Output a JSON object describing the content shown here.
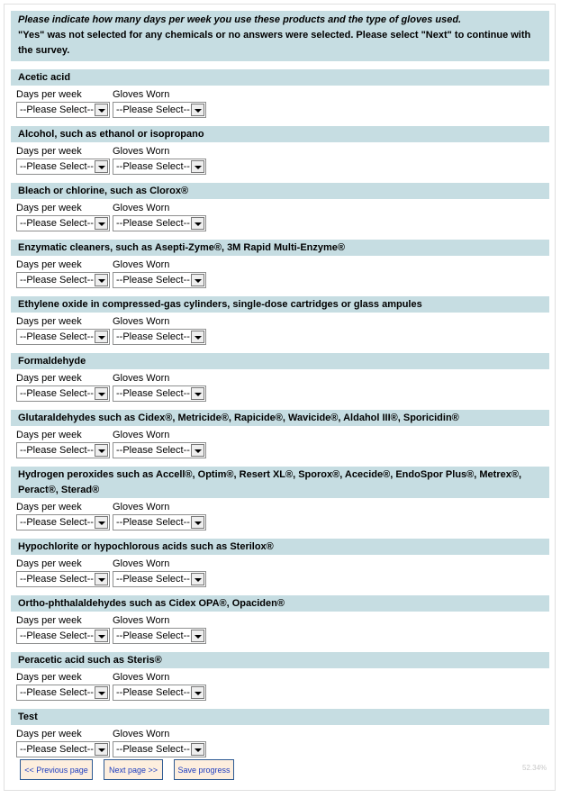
{
  "intro": {
    "line1": "Please indicate how many days per week you use these products and the type of gloves used.",
    "line2": "\"Yes\" was not selected for any chemicals or no answers were selected. Please select \"Next\" to continue with the survey."
  },
  "labels": {
    "days": "Days per week",
    "gloves": "Gloves Worn"
  },
  "placeholder": "--Please Select--",
  "sections": [
    {
      "title": "Acetic acid"
    },
    {
      "title": "Alcohol, such as ethanol or isopropano"
    },
    {
      "title": "Bleach or chlorine, such as Clorox®"
    },
    {
      "title": "Enzymatic cleaners, such as Asepti-Zyme®, 3M Rapid Multi-Enzyme®"
    },
    {
      "title": "Ethylene oxide in compressed-gas cylinders, single-dose cartridges or glass ampules"
    },
    {
      "title": "Formaldehyde"
    },
    {
      "title": "Glutaraldehydes such as Cidex®, Metricide®, Rapicide®, Wavicide®, Aldahol III®, Sporicidin®"
    },
    {
      "title": "Hydrogen peroxides such as Accell®, Optim®, Resert XL®, Sporox®, Acecide®, EndoSpor Plus®, Metrex®, Peract®, Sterad®"
    },
    {
      "title": "Hypochlorite or hypochlorous acids such as Sterilox®"
    },
    {
      "title": "Ortho-phthalaldehydes such as Cidex OPA®, Opaciden®"
    },
    {
      "title": "Peracetic acid such as Steris®"
    },
    {
      "title": "Test"
    }
  ],
  "buttons": {
    "prev": "<< Previous page",
    "next": "Next page >>",
    "save": "Save progress"
  },
  "progress": "52.34%"
}
